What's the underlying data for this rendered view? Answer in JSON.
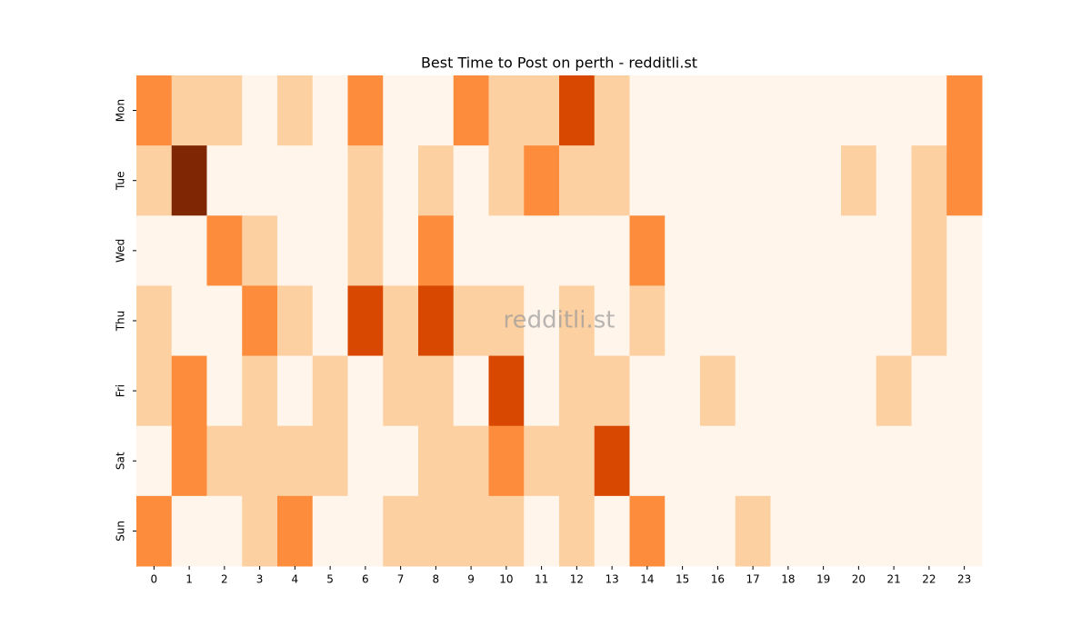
{
  "chart_data": {
    "type": "heatmap",
    "title": "Best Time to Post on perth - redditli.st",
    "watermark": "redditli.st",
    "x": [
      0,
      1,
      2,
      3,
      4,
      5,
      6,
      7,
      8,
      9,
      10,
      11,
      12,
      13,
      14,
      15,
      16,
      17,
      18,
      19,
      20,
      21,
      22,
      23
    ],
    "y": [
      "Mon",
      "Tue",
      "Wed",
      "Thu",
      "Fri",
      "Sat",
      "Sun"
    ],
    "values": [
      [
        2,
        1,
        1,
        0,
        1,
        0,
        2,
        0,
        0,
        2,
        1,
        1,
        3,
        1,
        0,
        0,
        0,
        0,
        0,
        0,
        0,
        0,
        0,
        2
      ],
      [
        1,
        4,
        0,
        0,
        0,
        0,
        1,
        0,
        1,
        0,
        1,
        2,
        1,
        1,
        0,
        0,
        0,
        0,
        0,
        0,
        1,
        0,
        1,
        2
      ],
      [
        0,
        0,
        2,
        1,
        0,
        0,
        1,
        0,
        2,
        0,
        0,
        0,
        0,
        0,
        2,
        0,
        0,
        0,
        0,
        0,
        0,
        0,
        1,
        0
      ],
      [
        1,
        0,
        0,
        2,
        1,
        0,
        3,
        1,
        3,
        1,
        1,
        0,
        1,
        0,
        1,
        0,
        0,
        0,
        0,
        0,
        0,
        0,
        1,
        0
      ],
      [
        1,
        2,
        0,
        1,
        0,
        1,
        0,
        1,
        1,
        0,
        3,
        0,
        1,
        1,
        0,
        0,
        1,
        0,
        0,
        0,
        0,
        1,
        0,
        0
      ],
      [
        0,
        2,
        1,
        1,
        1,
        1,
        0,
        0,
        1,
        1,
        2,
        1,
        1,
        3,
        0,
        0,
        0,
        0,
        0,
        0,
        0,
        0,
        0,
        0
      ],
      [
        2,
        0,
        0,
        1,
        2,
        0,
        0,
        1,
        1,
        1,
        1,
        0,
        1,
        0,
        2,
        0,
        0,
        1,
        0,
        0,
        0,
        0,
        0,
        0
      ]
    ],
    "zlim": [
      0,
      4
    ],
    "colors": [
      "#fff5eb",
      "#fdd0a2",
      "#fd8d3c",
      "#d94801",
      "#7f2704"
    ]
  }
}
